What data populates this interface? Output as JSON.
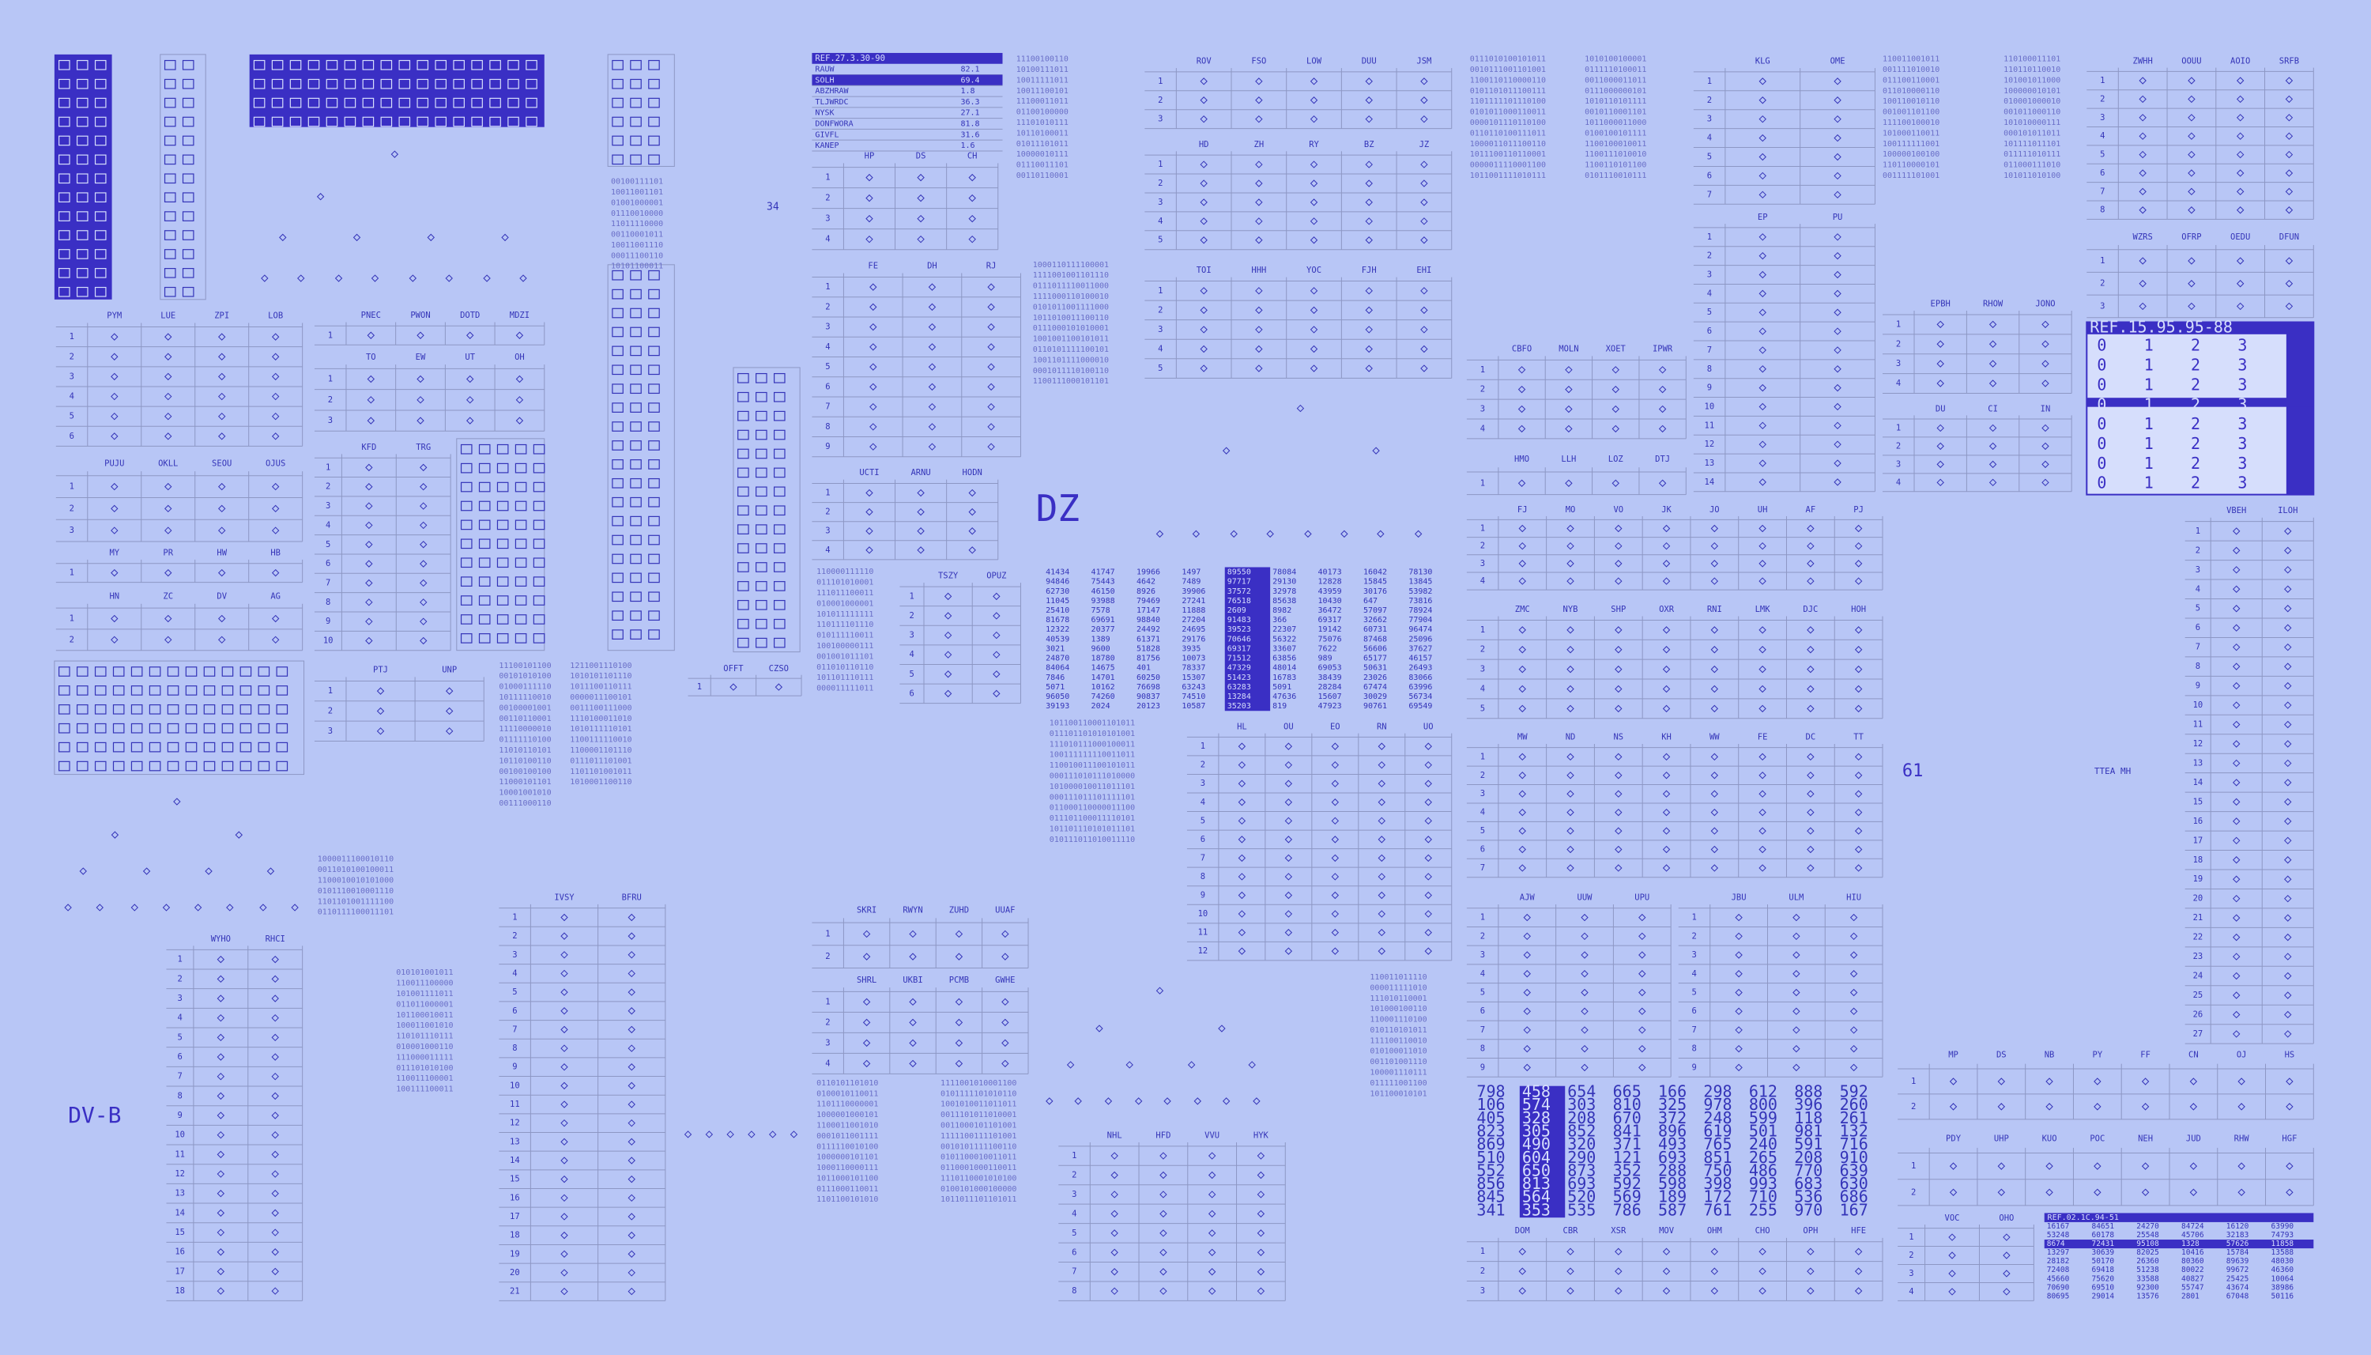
{
  "labels": {
    "dz": "DZ",
    "dvb": "DV-B",
    "n61": "61",
    "ttea": "TTEA MH",
    "n34": "34"
  },
  "ref_list": {
    "title": "REF.27.3.30-90",
    "items": [
      {
        "name": "RAUW",
        "value": "82.1"
      },
      {
        "name": "SOLH",
        "value": "69.4"
      },
      {
        "name": "ABZHRAW",
        "value": "1.8"
      },
      {
        "name": "TLJWRDC",
        "value": "36.3"
      },
      {
        "name": "NYSK",
        "value": "27.1"
      },
      {
        "name": "DONFWORA",
        "value": "81.8"
      },
      {
        "name": "GIVFL",
        "value": "31.6"
      },
      {
        "name": "KANEP",
        "value": "1.6"
      }
    ]
  },
  "tables": [
    {
      "headers": [
        "PYM",
        "LUE",
        "ZPI",
        "LOB"
      ],
      "rows": [
        1,
        2,
        3,
        4,
        5,
        6
      ]
    },
    {
      "headers": [
        "PNEC",
        "PWON",
        "DOTD",
        "MDZI"
      ],
      "rows": [
        1
      ]
    },
    {
      "headers": [
        "TO",
        "EW",
        "UT",
        "OH"
      ],
      "rows": [
        1,
        2,
        3
      ]
    },
    {
      "headers": [
        "KFD",
        "TRG"
      ],
      "rows": [
        1,
        2,
        3,
        4,
        5,
        6,
        7,
        8,
        9,
        10
      ]
    },
    {
      "headers": [
        "PUJU",
        "OKLL",
        "SEOU",
        "OJUS"
      ],
      "rows": [
        1,
        2,
        3
      ]
    },
    {
      "headers": [
        "MY",
        "PR",
        "HW",
        "HB"
      ],
      "rows": [
        1
      ]
    },
    {
      "headers": [
        "HN",
        "ZC",
        "DV",
        "AG"
      ],
      "rows": [
        1,
        2
      ]
    },
    {
      "headers": [
        "PTJ",
        "UNP"
      ],
      "rows": [
        1,
        2,
        3
      ]
    },
    {
      "headers": [
        "WYHO",
        "RHCI"
      ],
      "rows": [
        1,
        2,
        3,
        4,
        5,
        6,
        7,
        8,
        9,
        10,
        11,
        12,
        13,
        14,
        15,
        16,
        17,
        18
      ]
    },
    {
      "headers": [
        "IVSY",
        "BFRU"
      ],
      "rows": [
        1,
        2,
        3,
        4,
        5,
        6,
        7,
        8,
        9,
        10,
        11,
        12,
        13,
        14,
        15,
        16,
        17,
        18,
        19,
        20,
        21
      ]
    },
    {
      "headers": [
        "HP",
        "DS",
        "CH"
      ],
      "rows": [
        1,
        2,
        3,
        4
      ]
    },
    {
      "headers": [
        "FE",
        "DH",
        "RJ"
      ],
      "rows": [
        1,
        2,
        3,
        4,
        5,
        6,
        7,
        8,
        9
      ]
    },
    {
      "headers": [
        "UCTI",
        "ARNU",
        "HODN"
      ],
      "rows": [
        1,
        2,
        3,
        4
      ]
    },
    {
      "headers": [
        "TSZY",
        "OPUZ"
      ],
      "rows": [
        1,
        2,
        3,
        4,
        5,
        6
      ]
    },
    {
      "headers": [
        "OFFT",
        "CZSO"
      ],
      "rows": [
        1
      ]
    },
    {
      "headers": [
        "SKRI",
        "RWYN",
        "ZUHD",
        "UUAF"
      ],
      "rows": [
        1,
        2
      ]
    },
    {
      "headers": [
        "SHRL",
        "UKBI",
        "PCMB",
        "GWHE"
      ],
      "rows": [
        1,
        2,
        3,
        4
      ]
    },
    {
      "headers": [
        "ROV",
        "FSO",
        "LOW",
        "DUU",
        "JSM"
      ],
      "rows": [
        1,
        2,
        3
      ]
    },
    {
      "headers": [
        "HD",
        "ZH",
        "RY",
        "BZ",
        "JZ"
      ],
      "rows": [
        1,
        2,
        3,
        4,
        5
      ]
    },
    {
      "headers": [
        "TOI",
        "HHH",
        "YOC",
        "FJH",
        "EHI"
      ],
      "rows": [
        1,
        2,
        3,
        4,
        5
      ]
    },
    {
      "headers": [
        "HL",
        "OU",
        "EO",
        "RN",
        "UO"
      ],
      "rows": [
        1,
        2,
        3,
        4,
        5,
        6,
        7,
        8,
        9,
        10,
        11,
        12
      ]
    },
    {
      "headers": [
        "NHL",
        "HFD",
        "VVU",
        "HYK"
      ],
      "rows": [
        1,
        2,
        3,
        4,
        5,
        6,
        7,
        8
      ]
    },
    {
      "headers": [
        "KLG",
        "OME"
      ],
      "rows": [
        1,
        2,
        3,
        4,
        5,
        6,
        7
      ]
    },
    {
      "headers": [
        "EP",
        "PU"
      ],
      "rows": [
        1,
        2,
        3,
        4,
        5,
        6,
        7,
        8,
        9,
        10,
        11,
        12,
        13,
        14
      ]
    },
    {
      "headers": [
        "CBFO",
        "MOLN",
        "XOET",
        "IPWR"
      ],
      "rows": [
        1,
        2,
        3,
        4
      ]
    },
    {
      "headers": [
        "HMO",
        "LLH",
        "LOZ",
        "DTJ"
      ],
      "rows": [
        1
      ]
    },
    {
      "headers": [
        "FJ",
        "MO",
        "VO",
        "JK",
        "JO",
        "UH",
        "AF",
        "PJ"
      ],
      "rows": [
        1,
        2,
        3,
        4
      ]
    },
    {
      "headers": [
        "ZMC",
        "NYB",
        "SHP",
        "OXR",
        "RNI",
        "LMK",
        "DJC",
        "HOH"
      ],
      "rows": [
        1,
        2,
        3,
        4,
        5
      ]
    },
    {
      "headers": [
        "MW",
        "ND",
        "NS",
        "KH",
        "WW",
        "FE",
        "DC",
        "TT"
      ],
      "rows": [
        1,
        2,
        3,
        4,
        5,
        6,
        7
      ]
    },
    {
      "headers": [
        "AJW",
        "UUW",
        "UPU"
      ],
      "rows": [
        1,
        2,
        3,
        4,
        5,
        6,
        7,
        8,
        9
      ]
    },
    {
      "headers": [
        "JBU",
        "ULM",
        "HIU"
      ],
      "rows": [
        1,
        2,
        3,
        4,
        5,
        6,
        7,
        8,
        9
      ]
    },
    {
      "headers": [
        "DOM",
        "CBR",
        "XSR",
        "MOV",
        "OHM",
        "CHO",
        "OPH",
        "HFE"
      ],
      "rows": [
        1,
        2,
        3
      ]
    },
    {
      "headers": [
        "ZWHH",
        "OOUU",
        "AOIO",
        "SRFB"
      ],
      "rows": [
        1,
        2,
        3,
        4,
        5,
        6,
        7,
        8
      ]
    },
    {
      "headers": [
        "WZRS",
        "OFRP",
        "OEDU",
        "DFUN"
      ],
      "rows": [
        1,
        2,
        3
      ]
    },
    {
      "headers": [
        "EPBH",
        "RHOW",
        "JONO"
      ],
      "rows": [
        1,
        2,
        3,
        4
      ]
    },
    {
      "headers": [
        "DU",
        "CI",
        "IN"
      ],
      "rows": [
        1,
        2,
        3,
        4
      ]
    },
    {
      "headers": [
        "VBEH",
        "ILOH"
      ],
      "rows": [
        1,
        2,
        3,
        4,
        5,
        6,
        7,
        8,
        9,
        10,
        11,
        12,
        13,
        14,
        15,
        16,
        17,
        18,
        19,
        20,
        21,
        22,
        23,
        24,
        25,
        26,
        27
      ]
    },
    {
      "headers": [
        "MP",
        "DS",
        "NB",
        "PY",
        "FF",
        "CN",
        "OJ",
        "HS"
      ],
      "rows": [
        1,
        2
      ]
    },
    {
      "headers": [
        "PDY",
        "UHP",
        "KUO",
        "POC",
        "NEH",
        "JUD",
        "RHW",
        "HGF"
      ],
      "rows": [
        1,
        2
      ]
    },
    {
      "headers": [
        "VOC",
        "OHO"
      ],
      "rows": [
        1,
        2,
        3,
        4
      ]
    }
  ],
  "num_grid": {
    "rows": [
      [
        41434,
        41747,
        19966,
        1497,
        89550,
        78084,
        40173,
        16042,
        78130
      ],
      [
        94846,
        75443,
        4642,
        7489,
        97717,
        29130,
        12828,
        15845,
        13845
      ],
      [
        62730,
        46150,
        8926,
        39906,
        37572,
        32978,
        43959,
        30176,
        53982
      ],
      [
        11045,
        93988,
        79469,
        27241,
        76518,
        85638,
        10430,
        647,
        73816
      ],
      [
        25410,
        7578,
        17147,
        11888,
        2609,
        8982,
        36472,
        57097,
        78924
      ],
      [
        81678,
        69691,
        98840,
        27204,
        91483,
        366,
        69317,
        32662,
        77904
      ],
      [
        12322,
        20377,
        24492,
        24695,
        39523,
        22307,
        19142,
        60731,
        96474
      ],
      [
        40539,
        1389,
        61371,
        29176,
        70646,
        56322,
        75076,
        87468,
        25096
      ],
      [
        3021,
        9600,
        51828,
        3935,
        69317,
        33607,
        7622,
        56606,
        37627
      ],
      [
        24870,
        18780,
        81756,
        10073,
        71512,
        63856,
        989,
        65177,
        46157
      ],
      [
        84064,
        14675,
        401,
        78337,
        47329,
        48014,
        69053,
        50631,
        26493
      ],
      [
        7846,
        14701,
        60250,
        15307,
        51423,
        16783,
        38439,
        23026,
        83066
      ],
      [
        5071,
        10162,
        76698,
        63243,
        63283,
        5091,
        28284,
        67474,
        63996
      ],
      [
        96050,
        74260,
        90837,
        74510,
        13284,
        47636,
        15607,
        30029,
        56734
      ],
      [
        39193,
        2024,
        20123,
        10587,
        35203,
        819,
        47923,
        90761,
        69549
      ]
    ]
  },
  "big_grid": {
    "rows": [
      [
        798,
        458,
        654,
        665,
        166,
        298,
        612,
        888,
        592
      ],
      [
        106,
        574,
        303,
        810,
        325,
        978,
        800,
        396,
        260
      ],
      [
        405,
        328,
        208,
        670,
        372,
        248,
        599,
        118,
        261
      ],
      [
        823,
        305,
        852,
        841,
        896,
        619,
        501,
        981,
        132
      ],
      [
        869,
        490,
        320,
        371,
        493,
        765,
        240,
        591,
        716
      ],
      [
        510,
        604,
        290,
        121,
        693,
        851,
        265,
        208,
        910
      ],
      [
        552,
        650,
        873,
        352,
        288,
        750,
        486,
        770,
        639
      ],
      [
        856,
        813,
        693,
        592,
        598,
        398,
        993,
        683,
        630
      ],
      [
        845,
        564,
        520,
        569,
        189,
        172,
        710,
        536,
        686
      ],
      [
        341,
        353,
        535,
        786,
        587,
        761,
        255,
        970,
        167
      ]
    ]
  },
  "ref_table": {
    "title": "REF.02.1C.94-51",
    "rows": [
      [
        16167,
        84651,
        24270,
        84724,
        16120,
        63990
      ],
      [
        53248,
        60178,
        25548,
        45706,
        32183,
        74793
      ],
      [
        8674,
        72431,
        95108,
        1328,
        57626,
        11858
      ],
      [
        13297,
        30639,
        82025,
        10416,
        15784,
        13588
      ],
      [
        28182,
        50170,
        26360,
        80360,
        89639,
        48030
      ],
      [
        72408,
        69418,
        51238,
        80022,
        99672,
        46360
      ],
      [
        45660,
        75620,
        33588,
        40827,
        25425,
        10064
      ],
      [
        70690,
        69510,
        92300,
        55747,
        43674,
        38986
      ],
      [
        80695,
        29014,
        13576,
        2801,
        67048,
        50116
      ]
    ]
  },
  "ref_block": {
    "title": "REF.15.95.95-88",
    "digits": [
      0,
      1,
      2,
      3
    ]
  },
  "bits": [
    [
      "11100100110",
      "10100111011",
      "10011111011",
      "10011100101",
      "11100011011",
      "01100100000",
      "11101010111",
      "10110100011",
      "01011101011",
      "10000010111",
      "01110011101",
      "00110110001"
    ],
    [
      "00100111101",
      "10011001101",
      "01001000001",
      "01110010000",
      "11011110000",
      "00110001011",
      "10011001110",
      "00011100110",
      "10101100011"
    ],
    [
      "1000110111100001",
      "1111001001101110",
      "0111011110011000",
      "1111000110100010",
      "0101011001111000",
      "1011010011100110",
      "0111000101010001",
      "1001001100101011",
      "0110101111100101",
      "1001101111000010",
      "0001011110100110",
      "1100111000101101"
    ],
    [
      "110000111110",
      "011101010001",
      "111011100011",
      "010001000001",
      "101011111111",
      "110111101110",
      "010111110011",
      "100100000111",
      "001001011101",
      "011010110110",
      "101101110111",
      "000011111011"
    ],
    [
      "11100101100",
      "00101010100",
      "01000111110",
      "10111110010",
      "00100001001",
      "00110110001",
      "11110000010",
      "01111110100",
      "11010110101",
      "10110100110",
      "00100100100",
      "11000101101",
      "10001001010",
      "00111000110"
    ],
    [
      "1211001110100",
      "1010101101110",
      "1011100110111",
      "0000011100101",
      "0011100111000",
      "1110100011010",
      "1010111110101",
      "1100111110010",
      "1100001101110",
      "0111011101001",
      "1101101001011",
      "1010001100110"
    ],
    [
      "101100110001101011",
      "011101101010101001",
      "111010111000100011",
      "100111111110011011",
      "110010011100101011",
      "000111010111010000",
      "101000010011011101",
      "000111011101111101",
      "011000110000011100",
      "011101100011110101",
      "101101110101011101",
      "010111011010011110"
    ],
    [
      "010101001011",
      "110011100000",
      "101001111011",
      "011011000001",
      "101100010011",
      "100011001010",
      "110101110111",
      "010001000110",
      "111000011111",
      "011101010100",
      "110011100001",
      "100111100011"
    ],
    [
      "0110101101010",
      "0100010110011",
      "1101110000001",
      "1000001000101",
      "1100011001010",
      "0001011001111",
      "0111110010100",
      "1000000101101",
      "1000110000111",
      "1011000101100",
      "0111000110011",
      "1101100101010"
    ],
    [
      "110011011110",
      "000011111010",
      "111010110001",
      "101000100110",
      "110001110100",
      "010110101011",
      "111100110010",
      "010100011010",
      "001101001110",
      "100001110111",
      "011111001100",
      "101100010101"
    ],
    [
      "0111010100101011",
      "0010111001101001",
      "1100110110000110",
      "0101101011100111",
      "1101111101110100",
      "0101011000110011",
      "0000101110110100",
      "0110110100111011",
      "1000011011100110",
      "1011100110110001",
      "0000011110001100",
      "1011001111010111"
    ],
    [
      "110011001011",
      "001111010010",
      "011100110001",
      "011010000110",
      "100110010110",
      "001001101100",
      "111100100010",
      "101000110011",
      "100111111001",
      "100000100100",
      "110110000101",
      "001111101001"
    ],
    [
      "1111001010001100",
      "0101111101010110",
      "1001010011011011",
      "0011101011010001",
      "0011000101101001",
      "1111100111101001",
      "0010101111100110",
      "0101100010011011",
      "0110001000110011",
      "1110110001010100",
      "0100101000100000",
      "1011011101101011"
    ],
    [
      "110100011101",
      "110110110010",
      "101001011000",
      "100000010101",
      "010001000010",
      "001011000110",
      "101010000111",
      "000101011011",
      "101111011101",
      "011111010111",
      "011000111010",
      "101011010100"
    ],
    [
      "1010100100001",
      "0111110100011",
      "0011000011011",
      "0111000000101",
      "1010110101111",
      "0010110001101",
      "1011000011000",
      "0100100101111",
      "1100100010011",
      "1100111010010",
      "1100110101100",
      "0101110010111"
    ],
    [
      "1000011100010110",
      "0011010100100011",
      "1100010010101000",
      "0101110010001110",
      "1101101001111100",
      "0110111100011101"
    ]
  ]
}
